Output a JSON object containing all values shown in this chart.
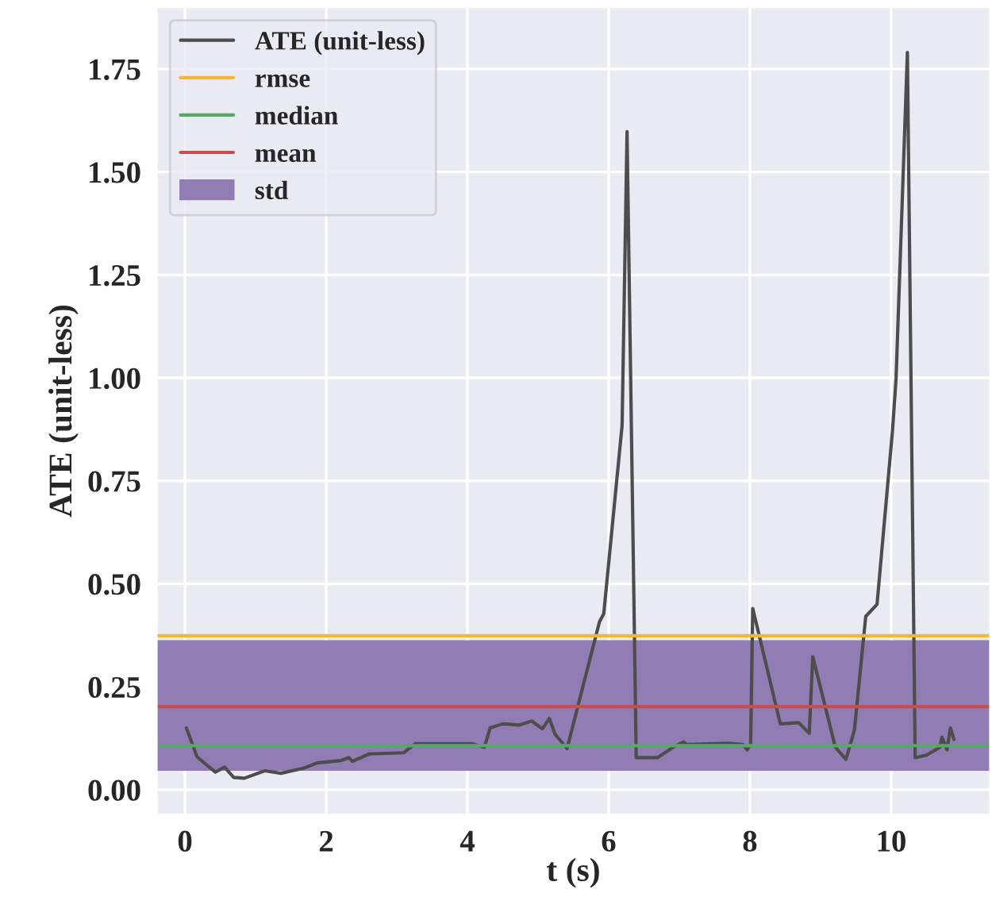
{
  "chart_data": {
    "type": "line",
    "xlabel": "t (s)",
    "ylabel": "ATE (unit-less)",
    "series": [
      {
        "name": "ATE (unit-less)",
        "color": "#4d4d4d",
        "x": [
          0.02,
          0.17,
          0.43,
          0.56,
          0.69,
          0.84,
          1.13,
          1.36,
          1.69,
          1.87,
          2.21,
          2.32,
          2.37,
          2.61,
          3.1,
          3.26,
          4.06,
          4.24,
          4.32,
          4.5,
          4.73,
          4.91,
          5.06,
          5.16,
          5.24,
          5.41,
          5.87,
          5.93,
          6.19,
          6.26,
          6.39,
          6.69,
          6.91,
          7.06,
          7.1,
          7.69,
          7.9,
          7.96,
          8.01,
          8.04,
          8.43,
          8.69,
          8.84,
          8.89,
          9.21,
          9.36,
          9.48,
          9.64,
          9.8,
          10.02,
          10.07,
          10.23,
          10.34,
          10.5,
          10.69,
          10.72,
          10.79,
          10.84,
          10.89
        ],
        "values": [
          0.15,
          0.08,
          0.043,
          0.055,
          0.03,
          0.028,
          0.046,
          0.04,
          0.053,
          0.065,
          0.071,
          0.078,
          0.069,
          0.087,
          0.09,
          0.112,
          0.112,
          0.103,
          0.15,
          0.16,
          0.157,
          0.167,
          0.148,
          0.173,
          0.135,
          0.1,
          0.408,
          0.427,
          0.885,
          1.598,
          0.078,
          0.078,
          0.103,
          0.116,
          0.11,
          0.113,
          0.11,
          0.097,
          0.11,
          0.44,
          0.16,
          0.163,
          0.137,
          0.323,
          0.103,
          0.074,
          0.145,
          0.421,
          0.45,
          0.874,
          1.0,
          1.79,
          0.078,
          0.084,
          0.103,
          0.128,
          0.097,
          0.15,
          0.122
        ]
      }
    ],
    "ref_lines": [
      {
        "axis": "y",
        "value": 0.374,
        "label": "rmse",
        "color": "#f5b731"
      },
      {
        "axis": "y",
        "value": 0.107,
        "label": "median",
        "color": "#55a868"
      },
      {
        "axis": "y",
        "value": 0.202,
        "label": "mean",
        "color": "#c44e52"
      }
    ],
    "bands": [
      {
        "axis": "y",
        "from": 0.046,
        "to": 0.363,
        "label": "std",
        "color": "#917db3"
      }
    ],
    "xlim": [
      -0.4,
      11.4
    ],
    "ylim": [
      -0.06,
      1.9
    ],
    "xticks": [
      0,
      2,
      4,
      6,
      8,
      10
    ],
    "yticks": [
      {
        "value": 0,
        "label": "0.00"
      },
      {
        "value": 0.25,
        "label": "0.25"
      },
      {
        "value": 0.5,
        "label": "0.50"
      },
      {
        "value": 0.75,
        "label": "0.75"
      },
      {
        "value": 1,
        "label": "1.00"
      },
      {
        "value": 1.25,
        "label": "1.25"
      },
      {
        "value": 1.5,
        "label": "1.50"
      },
      {
        "value": 1.75,
        "label": "1.75"
      }
    ],
    "grid": true,
    "legend": "top left"
  }
}
